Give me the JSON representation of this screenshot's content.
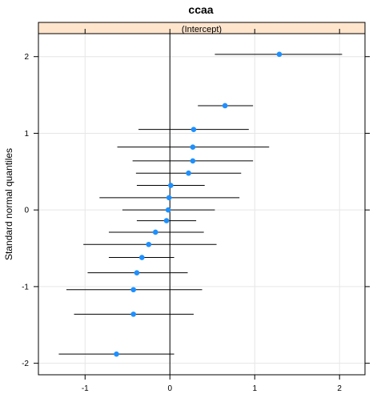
{
  "chart_data": {
    "type": "scatter",
    "title": "ccaa",
    "panel_label": "(Intercept)",
    "xlabel": "",
    "ylabel": "Standard normal quantiles",
    "xlim": [
      -1.55,
      2.3
    ],
    "ylim": [
      -2.15,
      2.3
    ],
    "xticks": [
      -1,
      0,
      1,
      2
    ],
    "yticks": [
      -2,
      -1,
      0,
      1,
      2
    ],
    "grid": true,
    "reference_line_x": 0,
    "colors": {
      "point": "#1e90ff",
      "interval": "#000000",
      "strip": "#ffe5cc",
      "grid": "#e6e6e6"
    },
    "points": [
      {
        "y": 2.03,
        "estimate": 1.29,
        "lower": 0.53,
        "upper": 2.03
      },
      {
        "y": 1.36,
        "estimate": 0.65,
        "lower": 0.33,
        "upper": 0.98
      },
      {
        "y": 1.05,
        "estimate": 0.28,
        "lower": -0.37,
        "upper": 0.93
      },
      {
        "y": 0.82,
        "estimate": 0.27,
        "lower": -0.62,
        "upper": 1.17
      },
      {
        "y": 0.64,
        "estimate": 0.27,
        "lower": -0.44,
        "upper": 0.98
      },
      {
        "y": 0.48,
        "estimate": 0.22,
        "lower": -0.4,
        "upper": 0.84
      },
      {
        "y": 0.32,
        "estimate": 0.01,
        "lower": -0.39,
        "upper": 0.41
      },
      {
        "y": 0.16,
        "estimate": -0.01,
        "lower": -0.83,
        "upper": 0.82
      },
      {
        "y": 0.0,
        "estimate": -0.02,
        "lower": -0.56,
        "upper": 0.53
      },
      {
        "y": -0.14,
        "estimate": -0.04,
        "lower": -0.39,
        "upper": 0.31
      },
      {
        "y": -0.29,
        "estimate": -0.17,
        "lower": -0.72,
        "upper": 0.4
      },
      {
        "y": -0.45,
        "estimate": -0.25,
        "lower": -1.02,
        "upper": 0.55
      },
      {
        "y": -0.62,
        "estimate": -0.33,
        "lower": -0.72,
        "upper": 0.05
      },
      {
        "y": -0.82,
        "estimate": -0.39,
        "lower": -0.97,
        "upper": 0.21
      },
      {
        "y": -1.04,
        "estimate": -0.43,
        "lower": -1.22,
        "upper": 0.38
      },
      {
        "y": -1.36,
        "estimate": -0.43,
        "lower": -1.13,
        "upper": 0.28
      },
      {
        "y": -1.88,
        "estimate": -0.63,
        "lower": -1.31,
        "upper": 0.05
      }
    ]
  }
}
